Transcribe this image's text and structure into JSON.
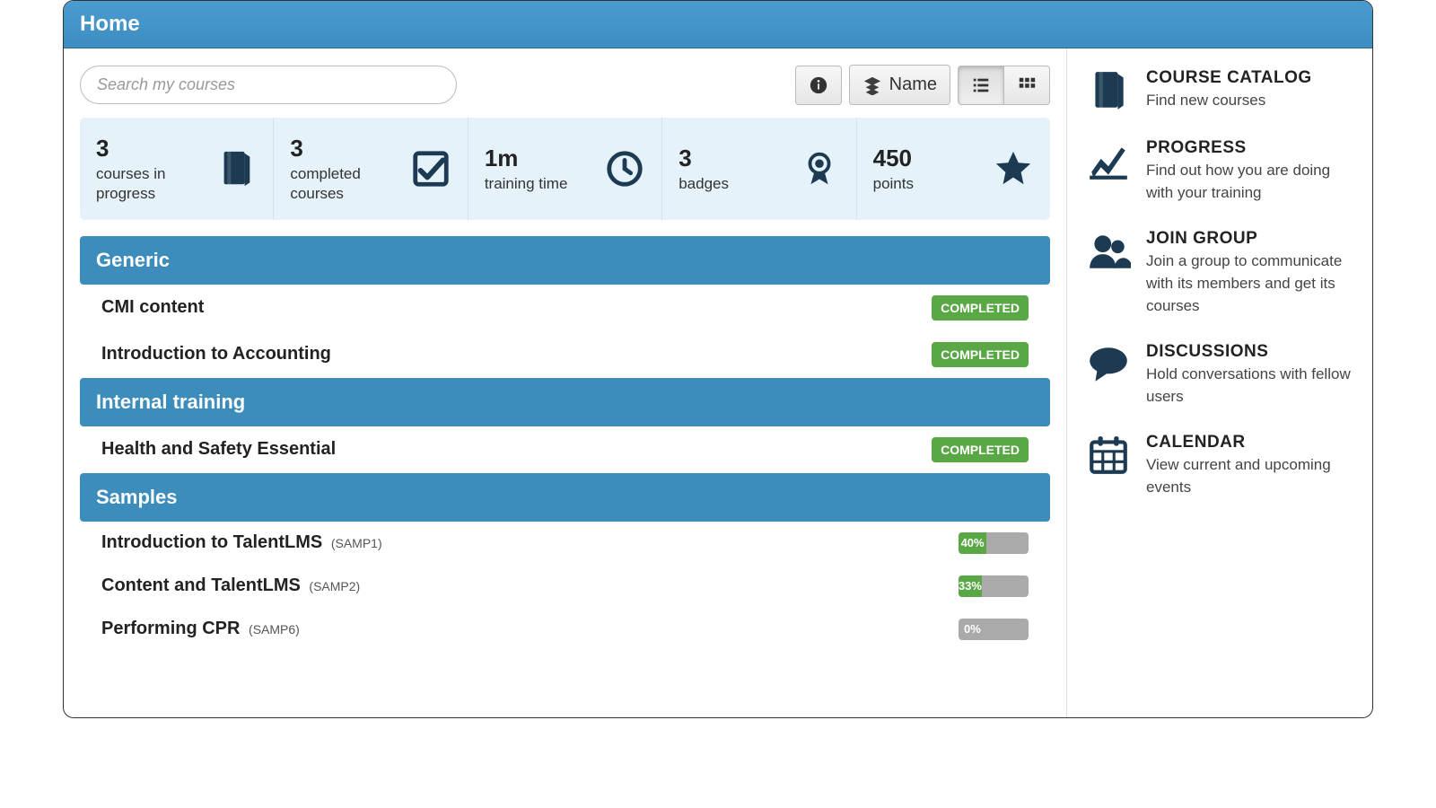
{
  "colors": {
    "header_bg_top": "#4a9cd0",
    "header_bg_bottom": "#3d8dc1",
    "section_header_bg": "#3c8dbc",
    "stats_bg": "#e6f2f9",
    "completed_badge_bg": "#5aa746",
    "progress_track": "#aaaaaa",
    "progress_fill": "#5aa746",
    "icon_dark": "#1c3b52"
  },
  "header": {
    "title": "Home"
  },
  "toolbar": {
    "search_placeholder": "Search my courses",
    "sort_label": "Name",
    "view": "list"
  },
  "stats": [
    {
      "value": "3",
      "label": "courses in progress",
      "icon": "book"
    },
    {
      "value": "3",
      "label": "completed courses",
      "icon": "check"
    },
    {
      "value": "1m",
      "label": "training time",
      "icon": "clock"
    },
    {
      "value": "3",
      "label": "badges",
      "icon": "badge"
    },
    {
      "value": "450",
      "label": "points",
      "icon": "star"
    }
  ],
  "sections": [
    {
      "title": "Generic",
      "courses": [
        {
          "name": "CMI content",
          "status": "COMPLETED"
        },
        {
          "name": "Introduction to Accounting",
          "status": "COMPLETED"
        }
      ]
    },
    {
      "title": "Internal training",
      "courses": [
        {
          "name": "Health and Safety Essential",
          "status": "COMPLETED"
        }
      ]
    },
    {
      "title": "Samples",
      "courses": [
        {
          "name": "Introduction to TalentLMS",
          "code": "(SAMP1)",
          "progress": 40,
          "progress_label": "40%"
        },
        {
          "name": "Content and TalentLMS",
          "code": "(SAMP2)",
          "progress": 33,
          "progress_label": "33%"
        },
        {
          "name": "Performing CPR",
          "code": "(SAMP6)",
          "progress": 0,
          "progress_label": "0%"
        }
      ]
    }
  ],
  "sidebar": [
    {
      "icon": "book",
      "title": "COURSE CATALOG",
      "desc": "Find new courses"
    },
    {
      "icon": "progress",
      "title": "PROGRESS",
      "desc": "Find out how you are doing with your training"
    },
    {
      "icon": "group",
      "title": "JOIN GROUP",
      "desc": "Join a group to communicate with its members and get its courses"
    },
    {
      "icon": "chat",
      "title": "DISCUSSIONS",
      "desc": "Hold conversations with fellow users"
    },
    {
      "icon": "calendar",
      "title": "CALENDAR",
      "desc": "View current and upcoming events"
    }
  ]
}
